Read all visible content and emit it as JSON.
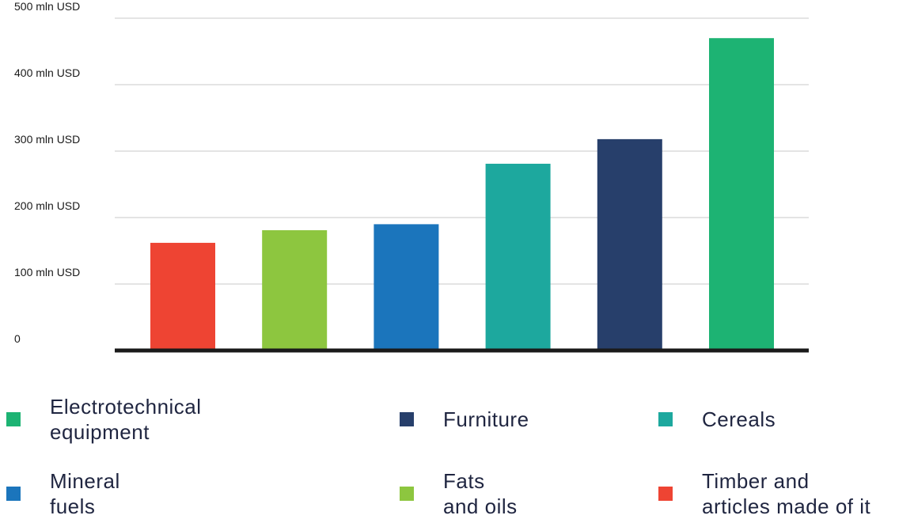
{
  "chart_data": {
    "type": "bar",
    "categories": [
      "Timber and\narticles made of it",
      "Fats\nand oils",
      "Mineral\nfuels",
      "Cereals",
      "Furniture",
      "Electrotechnical\nequipment"
    ],
    "values": [
      162,
      181,
      190,
      281,
      318,
      470
    ],
    "colors": [
      "#ee4433",
      "#8dc63f",
      "#1b75bc",
      "#1da89e",
      "#273f6b",
      "#1db373"
    ],
    "yticks": [
      {
        "value": 0,
        "label": "0"
      },
      {
        "value": 100,
        "label": "100 mln USD"
      },
      {
        "value": 200,
        "label": "200 mln USD"
      },
      {
        "value": 300,
        "label": "300 mln USD"
      },
      {
        "value": 400,
        "label": "400 mln USD"
      },
      {
        "value": 500,
        "label": "500 mln USD"
      }
    ],
    "ylim": [
      0,
      500
    ],
    "grid": true,
    "legend_position": "bottom",
    "legend": [
      {
        "label": "Electrotechnical\nequipment",
        "color": "#1db373"
      },
      {
        "label": "Furniture",
        "color": "#273f6b"
      },
      {
        "label": "Cereals",
        "color": "#1da89e"
      },
      {
        "label": "Mineral\nfuels",
        "color": "#1b75bc"
      },
      {
        "label": "Fats\nand oils",
        "color": "#8dc63f"
      },
      {
        "label": "Timber and\narticles made of it",
        "color": "#ee4433"
      }
    ]
  }
}
